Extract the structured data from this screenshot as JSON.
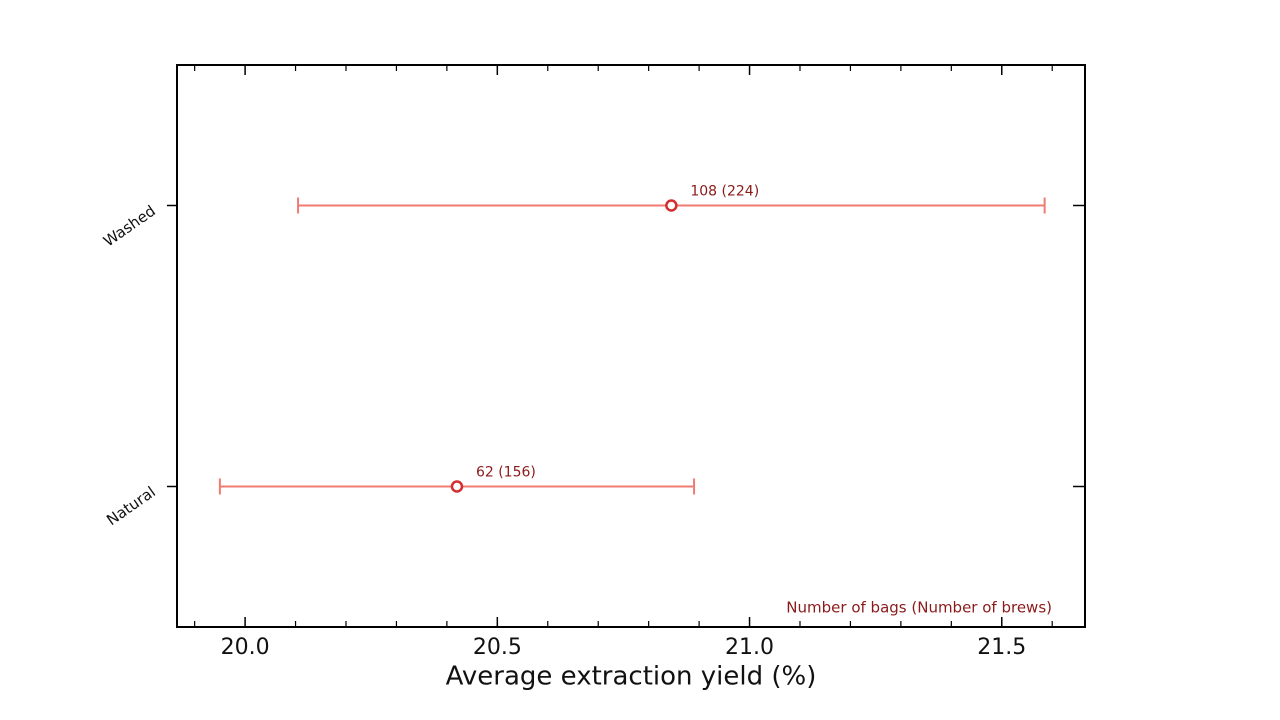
{
  "chart_data": {
    "type": "errorbar",
    "orientation": "horizontal",
    "xlabel": "Average extraction yield (%)",
    "categories": [
      "Natural",
      "Washed"
    ],
    "series": [
      {
        "values": [
          20.42,
          20.845
        ],
        "errors": [
          0.47,
          0.74
        ],
        "labels": [
          "62 (156)",
          "108 (224)"
        ],
        "color": "#f07b72",
        "marker_color": "#d32f2f",
        "label_color": "#8b1a1a"
      }
    ],
    "annotation": "Number of bags (Number of brews)",
    "xlim": [
      19.865,
      21.665
    ],
    "xticks": [
      {
        "value": 20,
        "label": "20.0"
      },
      20.5,
      {
        "value": 21,
        "label": "21.0"
      },
      21.5
    ],
    "xminorticks": [
      19.9,
      20.1,
      20.2,
      20.3,
      20.4,
      20.6,
      20.7,
      20.8,
      20.9,
      21.1,
      21.2,
      21.3,
      21.4,
      21.6
    ],
    "grid": false
  }
}
